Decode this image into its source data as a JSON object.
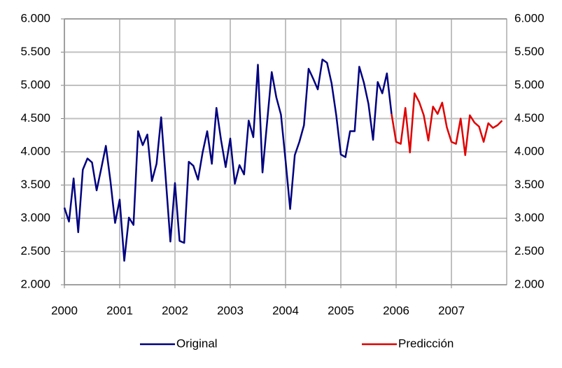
{
  "chart_data": {
    "type": "line",
    "x": [
      2000,
      2000.083,
      2000.167,
      2000.25,
      2000.333,
      2000.417,
      2000.5,
      2000.583,
      2000.667,
      2000.75,
      2000.833,
      2000.917,
      2001,
      2001.083,
      2001.167,
      2001.25,
      2001.333,
      2001.417,
      2001.5,
      2001.583,
      2001.667,
      2001.75,
      2001.833,
      2001.917,
      2002,
      2002.083,
      2002.167,
      2002.25,
      2002.333,
      2002.417,
      2002.5,
      2002.583,
      2002.667,
      2002.75,
      2002.833,
      2002.917,
      2003,
      2003.083,
      2003.167,
      2003.25,
      2003.333,
      2003.417,
      2003.5,
      2003.583,
      2003.667,
      2003.75,
      2003.833,
      2003.917,
      2004,
      2004.083,
      2004.167,
      2004.25,
      2004.333,
      2004.417,
      2004.5,
      2004.583,
      2004.667,
      2004.75,
      2004.833,
      2004.917,
      2005,
      2005.083,
      2005.167,
      2005.25,
      2005.333,
      2005.417,
      2005.5,
      2005.583,
      2005.667,
      2005.75,
      2005.833,
      2005.917,
      2006,
      2006.083,
      2006.167,
      2006.25,
      2006.333,
      2006.417,
      2006.5,
      2006.583,
      2006.667,
      2006.75,
      2006.833,
      2006.917,
      2007,
      2007.083,
      2007.167,
      2007.25,
      2007.333,
      2007.417,
      2007.5,
      2007.583,
      2007.667,
      2007.75,
      2007.833,
      2007.917
    ],
    "series": [
      {
        "name": "Original",
        "color": "#000080",
        "values": [
          3160,
          2950,
          3600,
          2790,
          3730,
          3900,
          3840,
          3420,
          3750,
          4090,
          3560,
          2930,
          3280,
          2360,
          3010,
          2900,
          4310,
          4100,
          4260,
          3560,
          3820,
          4520,
          3600,
          2650,
          3530,
          2660,
          2630,
          3850,
          3790,
          3580,
          3990,
          4310,
          3820,
          4660,
          4180,
          3770,
          4200,
          3520,
          3800,
          3660,
          4470,
          4220,
          5310,
          3690,
          4450,
          5200,
          4820,
          4560,
          3870,
          3140,
          3950,
          4150,
          4400,
          5250,
          5100,
          4940,
          5390,
          5340,
          5030,
          4550,
          3960,
          3920,
          4310,
          4310,
          5280,
          5040,
          4720,
          4180,
          5050,
          4880,
          5180,
          4570,
          null,
          null,
          null,
          null,
          null,
          null,
          null,
          null,
          null,
          null,
          null,
          null,
          null,
          null,
          null,
          null,
          null,
          null,
          null,
          null,
          null,
          null,
          null,
          null
        ]
      },
      {
        "name": "Predicción",
        "color": "#e00000",
        "values": [
          null,
          null,
          null,
          null,
          null,
          null,
          null,
          null,
          null,
          null,
          null,
          null,
          null,
          null,
          null,
          null,
          null,
          null,
          null,
          null,
          null,
          null,
          null,
          null,
          null,
          null,
          null,
          null,
          null,
          null,
          null,
          null,
          null,
          null,
          null,
          null,
          null,
          null,
          null,
          null,
          null,
          null,
          null,
          null,
          null,
          null,
          null,
          null,
          null,
          null,
          null,
          null,
          null,
          null,
          null,
          null,
          null,
          null,
          null,
          null,
          null,
          null,
          null,
          null,
          null,
          null,
          null,
          null,
          null,
          null,
          null,
          4570,
          4150,
          4120,
          4660,
          3990,
          4880,
          4750,
          4550,
          4170,
          4680,
          4570,
          4740,
          4370,
          4150,
          4120,
          4500,
          3950,
          4550,
          4440,
          4380,
          4150,
          4430,
          4360,
          4400,
          4470
        ]
      }
    ],
    "xlim": [
      2000,
      2008
    ],
    "xticks": [
      2000,
      2001,
      2002,
      2003,
      2004,
      2005,
      2006,
      2007
    ],
    "ylim": [
      2000,
      6000
    ],
    "yticks": [
      {
        "value": 2000,
        "label": "2.000"
      },
      {
        "value": 2500,
        "label": "2.500"
      },
      {
        "value": 3000,
        "label": "3.000"
      },
      {
        "value": 3500,
        "label": "3.500"
      },
      {
        "value": 4000,
        "label": "4.000"
      },
      {
        "value": 4500,
        "label": "4.500"
      },
      {
        "value": 5000,
        "label": "5.000"
      },
      {
        "value": 5500,
        "label": "5.500"
      },
      {
        "value": 6000,
        "label": "6.000"
      }
    ],
    "grid": true,
    "legend": "bottom"
  }
}
